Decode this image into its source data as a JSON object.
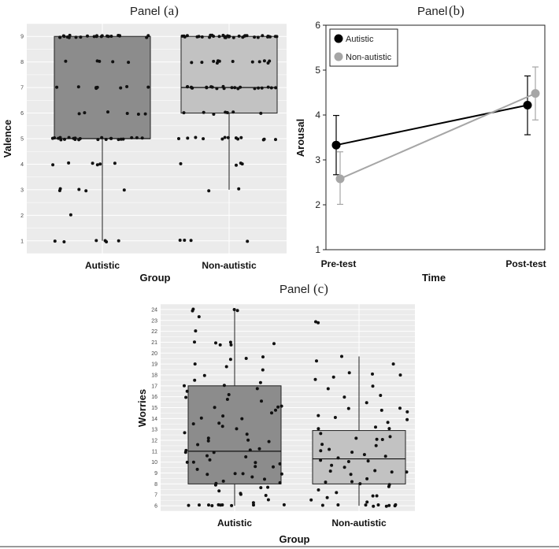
{
  "colors": {
    "panel_bg": "#ebebeb",
    "autistic_box": "#8c8c8c",
    "nonautistic_box": "#c2c2c2",
    "autistic_line": "#000000",
    "nonautistic_line": "#a6a6a6"
  },
  "chart_data": [
    {
      "id": "a",
      "type": "box",
      "title_word": "Panel",
      "title_tag": "(a)",
      "xlabel": "Group",
      "ylabel": "Valence",
      "ylim": [
        0.5,
        9.5
      ],
      "yticks": [
        "1",
        "2",
        "3",
        "4",
        "5",
        "6",
        "7",
        "8",
        "9"
      ],
      "categories": [
        "Autistic",
        "Non-autistic"
      ],
      "grid": true,
      "boxes": [
        {
          "name": "Autistic",
          "min": 1,
          "q1": 5,
          "median": 5,
          "q3": 9,
          "max": 9
        },
        {
          "name": "Non-autistic",
          "min": 3,
          "q1": 6,
          "median": 7,
          "q3": 9,
          "max": 9
        }
      ],
      "points": [
        {
          "values": [
            9,
            9,
            9,
            9,
            9,
            9,
            9,
            9,
            9,
            9,
            9,
            9,
            9,
            9,
            9,
            9,
            9,
            9,
            9,
            9,
            9,
            9,
            9,
            8,
            8,
            8,
            8,
            8,
            7,
            7,
            7,
            7,
            7,
            7,
            7,
            7,
            6,
            6,
            6,
            6,
            6,
            6,
            5,
            5,
            5,
            5,
            5,
            5,
            5,
            5,
            5,
            5,
            5,
            5,
            5,
            5,
            5,
            5,
            5,
            5,
            5,
            5,
            5,
            5,
            5,
            4,
            4,
            4,
            4,
            4,
            4,
            3,
            3,
            3,
            3,
            3,
            2,
            1,
            1,
            1,
            1,
            1,
            1
          ]
        },
        {
          "values": [
            9,
            9,
            9,
            9,
            9,
            9,
            9,
            9,
            9,
            9,
            9,
            9,
            9,
            9,
            9,
            9,
            9,
            9,
            9,
            9,
            9,
            9,
            9,
            9,
            9,
            9,
            9,
            9,
            9,
            9,
            9,
            9,
            9,
            9,
            8,
            8,
            8,
            8,
            8,
            8,
            8,
            8,
            8,
            8,
            8,
            8,
            7,
            7,
            7,
            7,
            7,
            7,
            7,
            7,
            7,
            7,
            7,
            7,
            7,
            7,
            7,
            7,
            7,
            7,
            7,
            7,
            7,
            7,
            6,
            6,
            6,
            6,
            6,
            6,
            6,
            5,
            5,
            5,
            5,
            5,
            5,
            5,
            5,
            5,
            5,
            5,
            5,
            5,
            4,
            4,
            4,
            4,
            3,
            3,
            1,
            1,
            1,
            1
          ]
        }
      ]
    },
    {
      "id": "b",
      "type": "line",
      "title_word": "Panel",
      "title_tag": "(b)",
      "xlabel": "Time",
      "ylabel": "Arousal",
      "categories": [
        "Pre-test",
        "Post-test"
      ],
      "ylim": [
        1,
        6
      ],
      "yticks": [
        "1",
        "2",
        "3",
        "4",
        "5",
        "6"
      ],
      "legend_position": "top-left",
      "series": [
        {
          "name": "Autistic",
          "values": [
            3.33,
            4.22
          ],
          "err_low": [
            2.67,
            3.56
          ],
          "err_high": [
            3.99,
            4.87
          ]
        },
        {
          "name": "Non-autistic",
          "values": [
            2.58,
            4.48
          ],
          "err_low": [
            2.01,
            3.89
          ],
          "err_high": [
            3.18,
            5.07
          ]
        }
      ]
    },
    {
      "id": "c",
      "type": "box",
      "title_word": "Panel",
      "title_tag": "(c)",
      "xlabel": "Group",
      "ylabel": "Worries",
      "ylim": [
        5.5,
        24.5
      ],
      "yticks": [
        "6",
        "7",
        "8",
        "9",
        "10",
        "11",
        "12",
        "13",
        "14",
        "15",
        "16",
        "17",
        "18",
        "19",
        "20",
        "21",
        "22",
        "23",
        "24"
      ],
      "categories": [
        "Autistic",
        "Non-autistic"
      ],
      "grid": true,
      "boxes": [
        {
          "name": "Autistic",
          "min": 6,
          "q1": 8,
          "median": 11,
          "q3": 17,
          "max": 24
        },
        {
          "name": "Non-autistic",
          "min": 6,
          "q1": 8,
          "median": 10.3,
          "q3": 12.9,
          "max": 19.7
        }
      ],
      "points": [
        {
          "values": [
            24,
            24,
            24,
            23.8,
            23.3,
            22,
            21,
            21,
            21,
            20.9,
            20.8,
            20.7,
            19.6,
            19.5,
            19.5,
            19,
            18.7,
            18.5,
            18,
            17.5,
            17.2,
            17,
            17,
            16.7,
            16.5,
            16.2,
            16,
            15.8,
            15.5,
            15.2,
            15,
            15,
            14.8,
            14.5,
            14.3,
            14.1,
            14,
            13.6,
            13.5,
            13.2,
            13,
            12.8,
            12.5,
            12.3,
            12,
            12,
            11.8,
            11.5,
            11.3,
            11,
            11,
            11,
            10.8,
            10.6,
            10.4,
            10.2,
            10,
            10,
            10,
            9.8,
            9.6,
            9.5,
            9.3,
            9,
            9,
            9,
            8.8,
            8.6,
            8.4,
            8.2,
            8,
            8,
            8,
            7.8,
            7.6,
            7.4,
            7.2,
            7,
            7,
            6.6,
            6.3,
            6.1,
            6,
            6,
            6,
            6,
            6,
            6,
            6,
            6,
            6
          ]
        },
        {
          "values": [
            22.8,
            22.8,
            19.7,
            19.3,
            19.1,
            18.2,
            18,
            18,
            17.8,
            17.5,
            17,
            16.8,
            16.2,
            16,
            15.5,
            15,
            15,
            14.8,
            14.5,
            14.3,
            14,
            14,
            13.6,
            13.3,
            13,
            13,
            12.7,
            12.4,
            12.2,
            12,
            12,
            11.7,
            11.4,
            11.2,
            11,
            11,
            10.7,
            10.5,
            10.3,
            10.1,
            10,
            10,
            9.8,
            9.5,
            9.3,
            9.1,
            9,
            9,
            8.8,
            8.5,
            8.3,
            8.1,
            8,
            8,
            7.8,
            7.5,
            7.3,
            7,
            7,
            6.8,
            6.5,
            6.3,
            6.1,
            6,
            6,
            6,
            6,
            6,
            6,
            6,
            6
          ]
        }
      ]
    }
  ]
}
